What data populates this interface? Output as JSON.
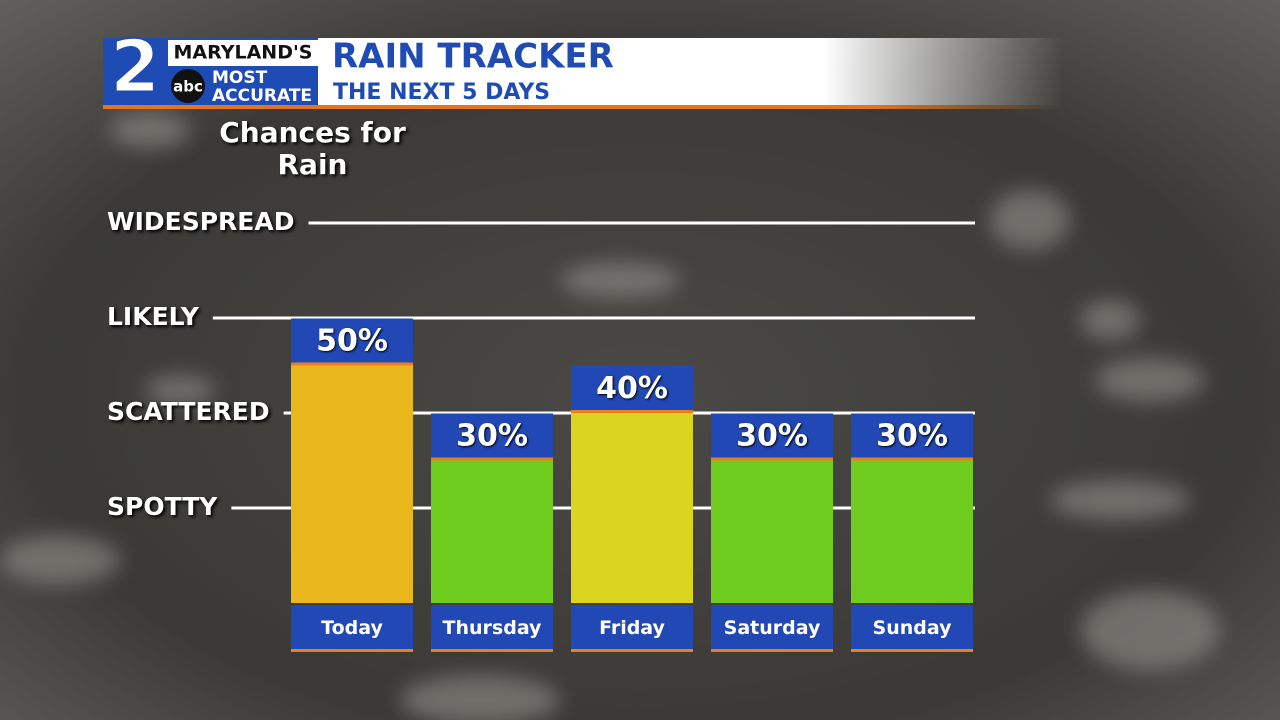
{
  "chart_data": {
    "type": "bar",
    "logo": {
      "number": "2",
      "station": "MARYLAND'S",
      "network": "abc",
      "line1": "MOST",
      "line2": "ACCURATE"
    },
    "title": "RAIN TRACKER",
    "subtitle": "THE NEXT 5 DAYS",
    "y_label": "Chances for Rain",
    "categories": [
      "Today",
      "Thursday",
      "Friday",
      "Saturday",
      "Sunday"
    ],
    "values": [
      50,
      30,
      40,
      30,
      30
    ],
    "value_labels": [
      "50%",
      "30%",
      "40%",
      "30%",
      "30%"
    ],
    "colors": [
      "#e9b71c",
      "#6fcd1f",
      "#dcd520",
      "#6fcd1f",
      "#6fcd1f"
    ],
    "ylim": [
      0,
      100
    ],
    "yticks": [
      {
        "value": 20,
        "label": "SPOTTY"
      },
      {
        "value": 40,
        "label": "SCATTERED"
      },
      {
        "value": 60,
        "label": "LIKELY"
      },
      {
        "value": 80,
        "label": "WIDESPREAD"
      }
    ],
    "grid": true
  }
}
